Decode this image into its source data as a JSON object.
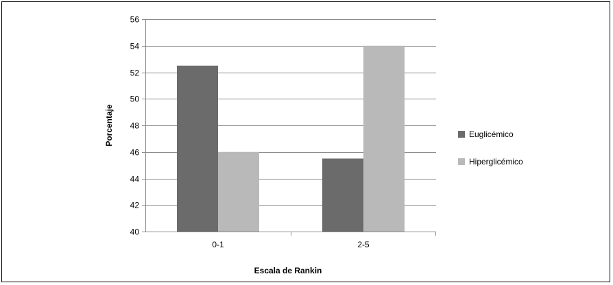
{
  "chart_data": {
    "type": "bar",
    "title": "",
    "xlabel": "Escala  de Rankin",
    "ylabel": "Porcentaje",
    "categories": [
      "0-1",
      "2-5"
    ],
    "series": [
      {
        "name": "Euglicémico",
        "values": [
          52.5,
          45.5
        ],
        "color": "#6b6b6b"
      },
      {
        "name": "Hiperglicémico",
        "values": [
          46,
          54
        ],
        "color": "#b9b9b9"
      }
    ],
    "ylim": [
      40,
      56
    ],
    "yticks": [
      40,
      42,
      44,
      46,
      48,
      50,
      52,
      54,
      56
    ],
    "grid": true,
    "legend_position": "right"
  }
}
